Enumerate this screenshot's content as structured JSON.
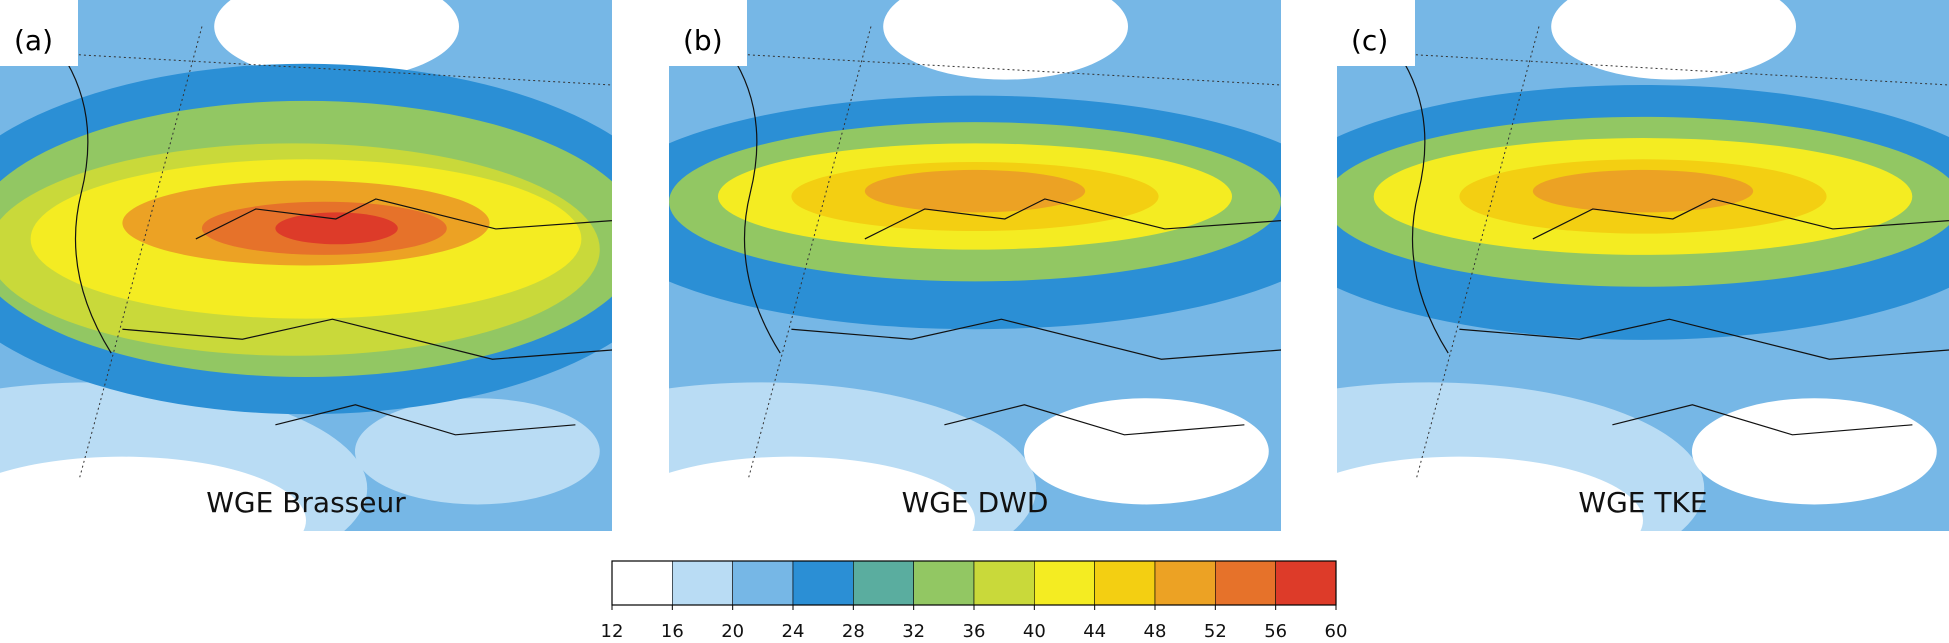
{
  "panels": [
    {
      "label": "(a)",
      "title": "WGE Brasseur"
    },
    {
      "label": "(b)",
      "title": "WGE DWD"
    },
    {
      "label": "(c)",
      "title": "WGE TKE"
    }
  ],
  "colorbar": {
    "ticks": [
      12,
      16,
      20,
      24,
      28,
      32,
      36,
      40,
      44,
      48,
      52,
      56,
      60
    ],
    "colors": [
      "#ffffff",
      "#b9dcf4",
      "#76b7e6",
      "#2b8fd5",
      "#5aad9f",
      "#92c763",
      "#c9d93a",
      "#f4ec22",
      "#f3cf12",
      "#eca224",
      "#e6722a",
      "#dd3b29"
    ]
  }
}
